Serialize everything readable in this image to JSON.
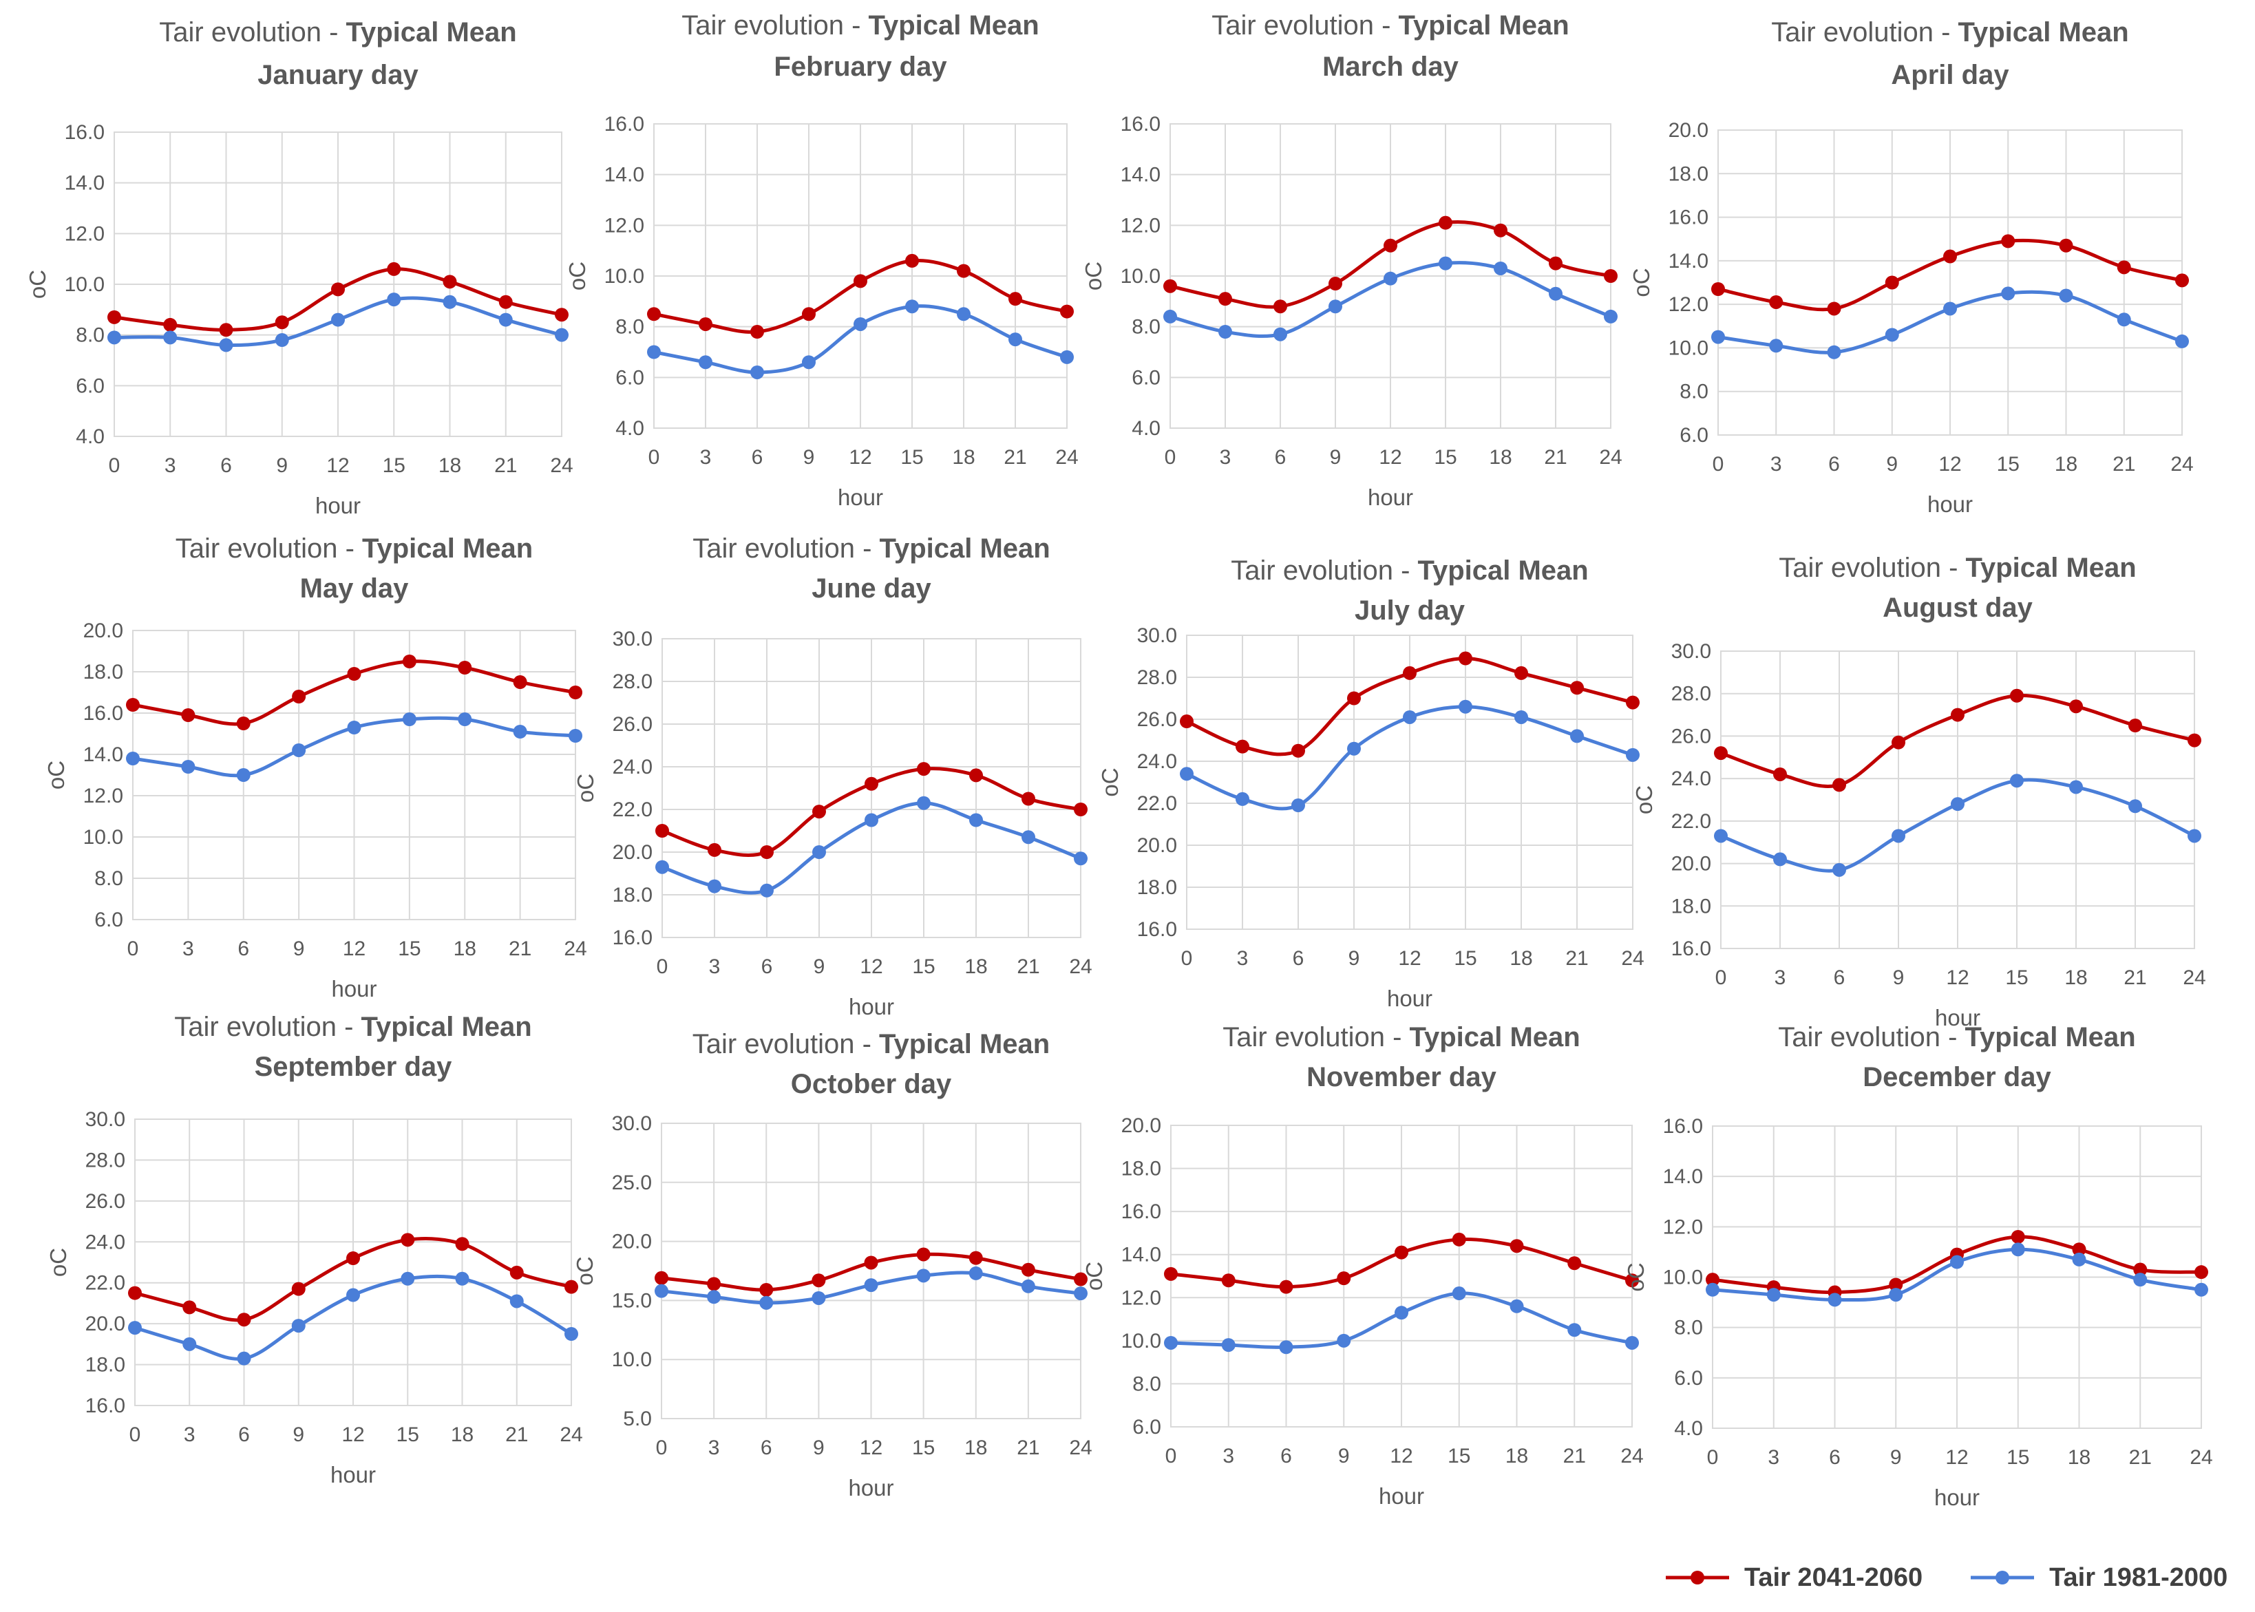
{
  "figure": {
    "colors": {
      "future": "#c00000",
      "past": "#4a7ed8",
      "grid": "#d9d9d9",
      "text": "#595959"
    }
  },
  "legend": [
    {
      "key": "future",
      "label": "Tair 2041-2060"
    },
    {
      "key": "past",
      "label": "Tair 1981-2000"
    }
  ],
  "chart_data": [
    {
      "type": "line",
      "title": "Tair evolution - ",
      "title_bold": "Typical Mean",
      "subtitle": "January day",
      "xlabel": "hour",
      "ylabel": "oC",
      "x": [
        0,
        3,
        6,
        9,
        12,
        15,
        18,
        21,
        24
      ],
      "ylim": [
        4,
        16
      ],
      "ystep": 2,
      "series": [
        {
          "name": "Tair 2041-2060",
          "values": [
            8.7,
            8.4,
            8.2,
            8.5,
            9.8,
            10.6,
            10.1,
            9.3,
            8.8
          ]
        },
        {
          "name": "Tair 1981-2000",
          "values": [
            7.9,
            7.9,
            7.6,
            7.8,
            8.6,
            9.4,
            9.3,
            8.6,
            8.0
          ]
        }
      ]
    },
    {
      "type": "line",
      "title": "Tair evolution - ",
      "title_bold": "Typical Mean",
      "subtitle": "February day",
      "xlabel": "hour",
      "ylabel": "oC",
      "x": [
        0,
        3,
        6,
        9,
        12,
        15,
        18,
        21,
        24
      ],
      "ylim": [
        4,
        16
      ],
      "ystep": 2,
      "series": [
        {
          "name": "Tair 2041-2060",
          "values": [
            8.5,
            8.1,
            7.8,
            8.5,
            9.8,
            10.6,
            10.2,
            9.1,
            8.6
          ]
        },
        {
          "name": "Tair 1981-2000",
          "values": [
            7.0,
            6.6,
            6.2,
            6.6,
            8.1,
            8.8,
            8.5,
            7.5,
            6.8
          ]
        }
      ]
    },
    {
      "type": "line",
      "title": "Tair evolution - ",
      "title_bold": "Typical Mean",
      "subtitle": "March day",
      "xlabel": "hour",
      "ylabel": "oC",
      "x": [
        0,
        3,
        6,
        9,
        12,
        15,
        18,
        21,
        24
      ],
      "ylim": [
        4,
        16
      ],
      "ystep": 2,
      "series": [
        {
          "name": "Tair 2041-2060",
          "values": [
            9.6,
            9.1,
            8.8,
            9.7,
            11.2,
            12.1,
            11.8,
            10.5,
            10.0
          ]
        },
        {
          "name": "Tair 1981-2000",
          "values": [
            8.4,
            7.8,
            7.7,
            8.8,
            9.9,
            10.5,
            10.3,
            9.3,
            8.4
          ]
        }
      ]
    },
    {
      "type": "line",
      "title": "Tair evolution - ",
      "title_bold": "Typical Mean",
      "subtitle": "April day",
      "xlabel": "hour",
      "ylabel": "oC",
      "x": [
        0,
        3,
        6,
        9,
        12,
        15,
        18,
        21,
        24
      ],
      "ylim": [
        6,
        20
      ],
      "ystep": 2,
      "series": [
        {
          "name": "Tair 2041-2060",
          "values": [
            12.7,
            12.1,
            11.8,
            13.0,
            14.2,
            14.9,
            14.7,
            13.7,
            13.1
          ]
        },
        {
          "name": "Tair 1981-2000",
          "values": [
            10.5,
            10.1,
            9.8,
            10.6,
            11.8,
            12.5,
            12.4,
            11.3,
            10.3
          ]
        }
      ]
    },
    {
      "type": "line",
      "title": "Tair evolution - ",
      "title_bold": "Typical Mean",
      "subtitle": "May day",
      "xlabel": "hour",
      "ylabel": "oC",
      "x": [
        0,
        3,
        6,
        9,
        12,
        15,
        18,
        21,
        24
      ],
      "ylim": [
        6,
        20
      ],
      "ystep": 2,
      "series": [
        {
          "name": "Tair 2041-2060",
          "values": [
            16.4,
            15.9,
            15.5,
            16.8,
            17.9,
            18.5,
            18.2,
            17.5,
            17.0
          ]
        },
        {
          "name": "Tair 1981-2000",
          "values": [
            13.8,
            13.4,
            13.0,
            14.2,
            15.3,
            15.7,
            15.7,
            15.1,
            14.9
          ]
        }
      ]
    },
    {
      "type": "line",
      "title": "Tair evolution - ",
      "title_bold": "Typical Mean",
      "subtitle": "June day",
      "xlabel": "hour",
      "ylabel": "oC",
      "x": [
        0,
        3,
        6,
        9,
        12,
        15,
        18,
        21,
        24
      ],
      "ylim": [
        16,
        30
      ],
      "ystep": 2,
      "series": [
        {
          "name": "Tair 2041-2060",
          "values": [
            21.0,
            20.1,
            20.0,
            21.9,
            23.2,
            23.9,
            23.6,
            22.5,
            22.0
          ]
        },
        {
          "name": "Tair 1981-2000",
          "values": [
            19.3,
            18.4,
            18.2,
            20.0,
            21.5,
            22.3,
            21.5,
            20.7,
            19.7
          ]
        }
      ]
    },
    {
      "type": "line",
      "title": "Tair evolution - ",
      "title_bold": "Typical Mean",
      "subtitle": "July day",
      "xlabel": "hour",
      "ylabel": "oC",
      "x": [
        0,
        3,
        6,
        9,
        12,
        15,
        18,
        21,
        24
      ],
      "ylim": [
        16,
        30
      ],
      "ystep": 2,
      "series": [
        {
          "name": "Tair 2041-2060",
          "values": [
            25.9,
            24.7,
            24.5,
            27.0,
            28.2,
            28.9,
            28.2,
            27.5,
            26.8
          ]
        },
        {
          "name": "Tair 1981-2000",
          "values": [
            23.4,
            22.2,
            21.9,
            24.6,
            26.1,
            26.6,
            26.1,
            25.2,
            24.3
          ]
        }
      ]
    },
    {
      "type": "line",
      "title": "Tair evolution - ",
      "title_bold": "Typical Mean",
      "subtitle": "August day",
      "xlabel": "hour",
      "ylabel": "oC",
      "x": [
        0,
        3,
        6,
        9,
        12,
        15,
        18,
        21,
        24
      ],
      "ylim": [
        16,
        30
      ],
      "ystep": 2,
      "series": [
        {
          "name": "Tair 2041-2060",
          "values": [
            25.2,
            24.2,
            23.7,
            25.7,
            27.0,
            27.9,
            27.4,
            26.5,
            25.8
          ]
        },
        {
          "name": "Tair 1981-2000",
          "values": [
            21.3,
            20.2,
            19.7,
            21.3,
            22.8,
            23.9,
            23.6,
            22.7,
            21.3
          ]
        }
      ]
    },
    {
      "type": "line",
      "title": "Tair evolution - ",
      "title_bold": "Typical Mean",
      "subtitle": "September day",
      "xlabel": "hour",
      "ylabel": "oC",
      "x": [
        0,
        3,
        6,
        9,
        12,
        15,
        18,
        21,
        24
      ],
      "ylim": [
        16,
        30
      ],
      "ystep": 2,
      "series": [
        {
          "name": "Tair 2041-2060",
          "values": [
            21.5,
            20.8,
            20.2,
            21.7,
            23.2,
            24.1,
            23.9,
            22.5,
            21.8
          ]
        },
        {
          "name": "Tair 1981-2000",
          "values": [
            19.8,
            19.0,
            18.3,
            19.9,
            21.4,
            22.2,
            22.2,
            21.1,
            19.5
          ]
        }
      ]
    },
    {
      "type": "line",
      "title": "Tair evolution - ",
      "title_bold": "Typical Mean",
      "subtitle": "October day",
      "xlabel": "hour",
      "ylabel": "oC",
      "x": [
        0,
        3,
        6,
        9,
        12,
        15,
        18,
        21,
        24
      ],
      "ylim": [
        5,
        30
      ],
      "ystep": 5,
      "series": [
        {
          "name": "Tair 2041-2060",
          "values": [
            16.9,
            16.4,
            15.9,
            16.7,
            18.2,
            18.9,
            18.6,
            17.6,
            16.8
          ]
        },
        {
          "name": "Tair 1981-2000",
          "values": [
            15.8,
            15.3,
            14.8,
            15.2,
            16.3,
            17.1,
            17.3,
            16.2,
            15.6
          ]
        }
      ]
    },
    {
      "type": "line",
      "title": "Tair evolution - ",
      "title_bold": "Typical Mean",
      "subtitle": "November day",
      "xlabel": "hour",
      "ylabel": "oC",
      "x": [
        0,
        3,
        6,
        9,
        12,
        15,
        18,
        21,
        24
      ],
      "ylim": [
        6,
        20
      ],
      "ystep": 2,
      "series": [
        {
          "name": "Tair 2041-2060",
          "values": [
            13.1,
            12.8,
            12.5,
            12.9,
            14.1,
            14.7,
            14.4,
            13.6,
            12.8
          ]
        },
        {
          "name": "Tair 1981-2000",
          "values": [
            9.9,
            9.8,
            9.7,
            10.0,
            11.3,
            12.2,
            11.6,
            10.5,
            9.9
          ]
        }
      ]
    },
    {
      "type": "line",
      "title": "Tair evolution - ",
      "title_bold": "Typical Mean",
      "subtitle": "December day",
      "xlabel": "hour",
      "ylabel": "oC",
      "x": [
        0,
        3,
        6,
        9,
        12,
        15,
        18,
        21,
        24
      ],
      "ylim": [
        4,
        16
      ],
      "ystep": 2,
      "series": [
        {
          "name": "Tair 2041-2060",
          "values": [
            9.9,
            9.6,
            9.4,
            9.7,
            10.9,
            11.6,
            11.1,
            10.3,
            10.2
          ]
        },
        {
          "name": "Tair 1981-2000",
          "values": [
            9.5,
            9.3,
            9.1,
            9.3,
            10.6,
            11.1,
            10.7,
            9.9,
            9.5
          ]
        }
      ]
    }
  ]
}
